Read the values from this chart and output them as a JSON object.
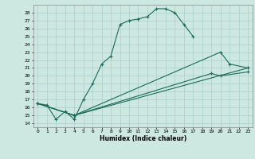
{
  "title": "",
  "xlabel": "Humidex (Indice chaleur)",
  "bg_color": "#cce8e0",
  "grid_color": "#aacfc8",
  "line_color": "#1a6b5a",
  "xlim": [
    -0.5,
    23.5
  ],
  "ylim": [
    13.5,
    29.0
  ],
  "xticks": [
    0,
    1,
    2,
    3,
    4,
    5,
    6,
    7,
    8,
    9,
    10,
    11,
    12,
    13,
    14,
    15,
    16,
    17,
    18,
    19,
    20,
    21,
    22,
    23
  ],
  "yticks": [
    14,
    15,
    16,
    17,
    18,
    19,
    20,
    21,
    22,
    23,
    24,
    25,
    26,
    27,
    28
  ],
  "line1_x": [
    0,
    1,
    2,
    3,
    4,
    5,
    6,
    7,
    8,
    9,
    10,
    11,
    12,
    13,
    14,
    15,
    16,
    17
  ],
  "line1_y": [
    16.5,
    16.3,
    14.5,
    15.5,
    14.5,
    17.0,
    19.0,
    21.5,
    22.5,
    26.5,
    27.0,
    27.2,
    27.5,
    28.5,
    28.5,
    28.0,
    26.5,
    25.0
  ],
  "line2_x": [
    0,
    4,
    23
  ],
  "line2_y": [
    16.5,
    15.0,
    21.0
  ],
  "line3_x": [
    0,
    4,
    20,
    21,
    23
  ],
  "line3_y": [
    16.5,
    15.0,
    23.0,
    21.5,
    21.0
  ],
  "line4_x": [
    0,
    4,
    19,
    20,
    23
  ],
  "line4_y": [
    16.5,
    15.0,
    20.3,
    20.0,
    20.5
  ]
}
